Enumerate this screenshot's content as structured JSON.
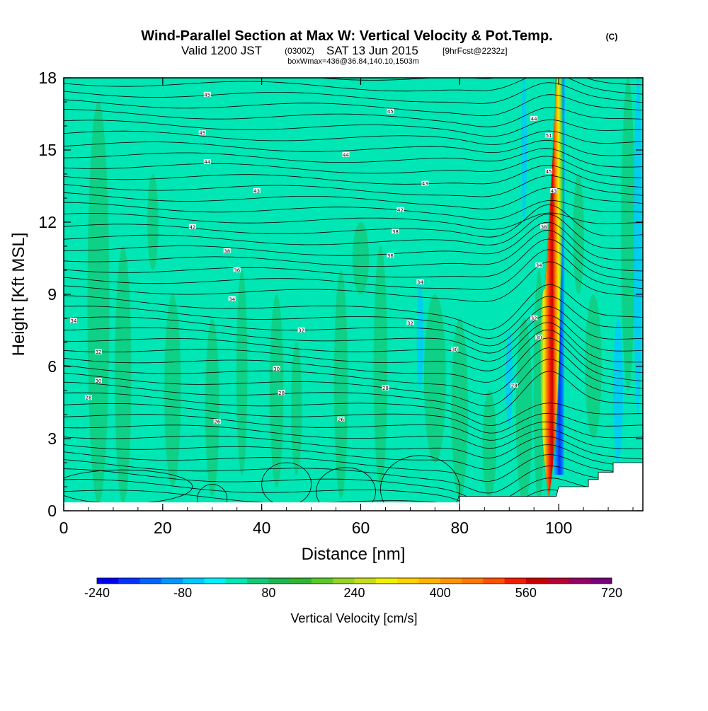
{
  "chart_data": {
    "type": "heatmap",
    "title": "Wind-Parallel Section at Max W: Vertical Velocity & Pot.Temp.",
    "title_mark": "(C)",
    "subtitle": {
      "valid_prefix": "Valid 1200 JST",
      "utc": "(0300Z)",
      "date": "SAT 13 Jun 2015",
      "forecast": "[9hrFcst@2232z]"
    },
    "subtitle2": "boxWmax=436@36.84,140.10,1503m",
    "xlabel": "Distance [nm]",
    "ylabel": "Height [Kft MSL]",
    "xlim": [
      0,
      117
    ],
    "ylim": [
      0,
      18
    ],
    "x_ticks": [
      "0",
      "20",
      "40",
      "60",
      "80",
      "100"
    ],
    "y_ticks": [
      "0",
      "3",
      "6",
      "9",
      "12",
      "15",
      "18"
    ],
    "colorbar": {
      "label": "Vertical Velocity [cm/s]",
      "tick_labels": [
        "-240",
        "-80",
        "80",
        "240",
        "400",
        "560",
        "720"
      ],
      "min": -240,
      "max": 720,
      "step": 40,
      "colors": [
        "#0000f0",
        "#0032ff",
        "#0064ff",
        "#0096ff",
        "#00c8ff",
        "#00f0ff",
        "#00e6b4",
        "#14c878",
        "#1eb450",
        "#32b432",
        "#5ac828",
        "#96d228",
        "#c8dc1e",
        "#f0f000",
        "#ffd200",
        "#ffb400",
        "#ff9600",
        "#ff7800",
        "#ff5000",
        "#f01e00",
        "#c80000",
        "#b40032",
        "#960064",
        "#780078"
      ]
    },
    "vertical_velocity": {
      "background": "#00e6b4",
      "updraft_core": {
        "x": 98,
        "x_top": 100,
        "z_base": 0.5,
        "z_top": 18,
        "max_cm_s": 720
      },
      "downdraft_band": {
        "x": 100,
        "z_base": 1.5,
        "z_top": 18,
        "min_cm_s": -240
      }
    },
    "theta_contour_labels": [
      {
        "text": "45",
        "x": 29,
        "y": 17.3
      },
      {
        "text": "45",
        "x": 28,
        "y": 15.7
      },
      {
        "text": "44",
        "x": 29,
        "y": 14.5
      },
      {
        "text": "43",
        "x": 39,
        "y": 13.3
      },
      {
        "text": "42",
        "x": 26,
        "y": 11.8
      },
      {
        "text": "38",
        "x": 33,
        "y": 10.8
      },
      {
        "text": "36",
        "x": 35,
        "y": 10.0
      },
      {
        "text": "34",
        "x": 34,
        "y": 8.8
      },
      {
        "text": "34",
        "x": 2,
        "y": 7.9
      },
      {
        "text": "32",
        "x": 48,
        "y": 7.5
      },
      {
        "text": "32",
        "x": 7,
        "y": 6.6
      },
      {
        "text": "30",
        "x": 43,
        "y": 5.9
      },
      {
        "text": "30",
        "x": 7,
        "y": 5.4
      },
      {
        "text": "28",
        "x": 5,
        "y": 4.7
      },
      {
        "text": "28",
        "x": 44,
        "y": 4.9
      },
      {
        "text": "26",
        "x": 31,
        "y": 3.7
      },
      {
        "text": "26",
        "x": 56,
        "y": 3.8
      },
      {
        "text": "45",
        "x": 66,
        "y": 16.6
      },
      {
        "text": "44",
        "x": 57,
        "y": 14.8
      },
      {
        "text": "43",
        "x": 73,
        "y": 13.6
      },
      {
        "text": "42",
        "x": 68,
        "y": 12.5
      },
      {
        "text": "38",
        "x": 67,
        "y": 11.6
      },
      {
        "text": "36",
        "x": 66,
        "y": 10.6
      },
      {
        "text": "34",
        "x": 72,
        "y": 9.5
      },
      {
        "text": "32",
        "x": 70,
        "y": 7.8
      },
      {
        "text": "30",
        "x": 79,
        "y": 6.7
      },
      {
        "text": "28",
        "x": 65,
        "y": 5.1
      },
      {
        "text": "44",
        "x": 95,
        "y": 16.3
      },
      {
        "text": "51",
        "x": 98,
        "y": 15.6
      },
      {
        "text": "45",
        "x": 98,
        "y": 14.1
      },
      {
        "text": "43",
        "x": 99,
        "y": 13.3
      },
      {
        "text": "38",
        "x": 97,
        "y": 11.8
      },
      {
        "text": "34",
        "x": 96,
        "y": 10.2
      },
      {
        "text": "32",
        "x": 95,
        "y": 8.0
      },
      {
        "text": "30",
        "x": 96,
        "y": 7.2
      },
      {
        "text": "28",
        "x": 91,
        "y": 5.2
      }
    ]
  }
}
